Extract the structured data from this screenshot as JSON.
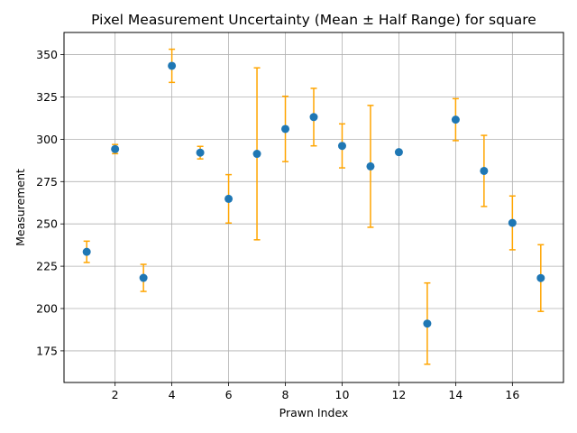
{
  "chart_data": {
    "type": "scatter",
    "title": "Pixel Measurement Uncertainty (Mean ± Half Range) for square",
    "xlabel": "Prawn Index",
    "ylabel": "Measurement",
    "xlim": [
      0.2,
      17.8
    ],
    "ylim": [
      156.3,
      363.1
    ],
    "xticks": [
      2,
      4,
      6,
      8,
      10,
      12,
      14,
      16
    ],
    "xtick_labels": [
      "2",
      "4",
      "6",
      "8",
      "10",
      "12",
      "14",
      "16"
    ],
    "yticks": [
      175,
      200,
      225,
      250,
      275,
      300,
      325,
      350
    ],
    "ytick_labels": [
      "175",
      "200",
      "225",
      "250",
      "275",
      "300",
      "325",
      "350"
    ],
    "grid": true,
    "marker_color": "#1f77b4",
    "errorbar_color": "#ffa500",
    "points": [
      {
        "x": 1,
        "y": 233.5,
        "err": 6.3
      },
      {
        "x": 2,
        "y": 294.2,
        "err": 2.7
      },
      {
        "x": 3,
        "y": 218.1,
        "err": 8.0
      },
      {
        "x": 4,
        "y": 343.4,
        "err": 9.8
      },
      {
        "x": 5,
        "y": 292.1,
        "err": 3.7
      },
      {
        "x": 6,
        "y": 264.8,
        "err": 14.3
      },
      {
        "x": 7,
        "y": 291.4,
        "err": 50.8
      },
      {
        "x": 8,
        "y": 306.1,
        "err": 19.3
      },
      {
        "x": 9,
        "y": 313.1,
        "err": 17.0
      },
      {
        "x": 10,
        "y": 296.1,
        "err": 13.0
      },
      {
        "x": 11,
        "y": 284.0,
        "err": 36.0
      },
      {
        "x": 12,
        "y": 292.4,
        "err": 0.0
      },
      {
        "x": 13,
        "y": 191.1,
        "err": 24.0
      },
      {
        "x": 14,
        "y": 311.6,
        "err": 12.4
      },
      {
        "x": 15,
        "y": 281.3,
        "err": 21.0
      },
      {
        "x": 16,
        "y": 250.6,
        "err": 15.9
      },
      {
        "x": 17,
        "y": 218.0,
        "err": 19.7
      }
    ]
  }
}
